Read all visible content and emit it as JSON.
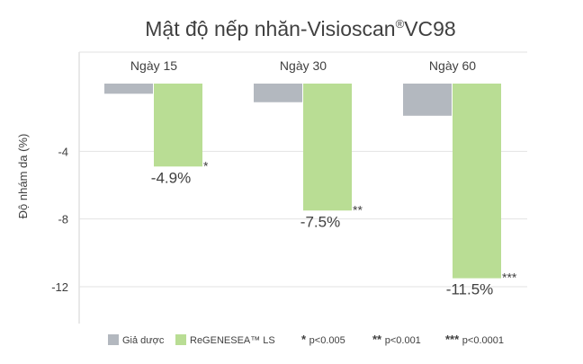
{
  "chart_data": {
    "type": "bar",
    "title": "Mật độ nếp nhăn-Visioscan",
    "title_sup": "®",
    "title_suffix": "VC98",
    "ylabel": "Độ nhám da (%)",
    "ylim": [
      -14.5,
      0
    ],
    "yticks": [
      -4,
      -8,
      -12
    ],
    "grid": "horizontal",
    "categories": [
      "Ngày 15",
      "Ngày 30",
      "Ngày 60"
    ],
    "series": [
      {
        "name": "Giả dược",
        "color": "#b3b8bf",
        "values": [
          -0.6,
          -1.1,
          -1.9
        ]
      },
      {
        "name": "ReGENESEA™ LS",
        "color": "#b9dd94",
        "values": [
          -4.9,
          -7.5,
          -11.5
        ]
      }
    ],
    "value_labels": [
      "-4.9%",
      "-7.5%",
      "-11.5%"
    ],
    "significance": [
      "*",
      "**",
      "***"
    ],
    "legend": {
      "placement": "bottom",
      "notes": [
        {
          "stars": "*",
          "text": "p<0.005"
        },
        {
          "stars": "**",
          "text": "p<0.001"
        },
        {
          "stars": "***",
          "text": "p<0.0001"
        }
      ]
    }
  }
}
